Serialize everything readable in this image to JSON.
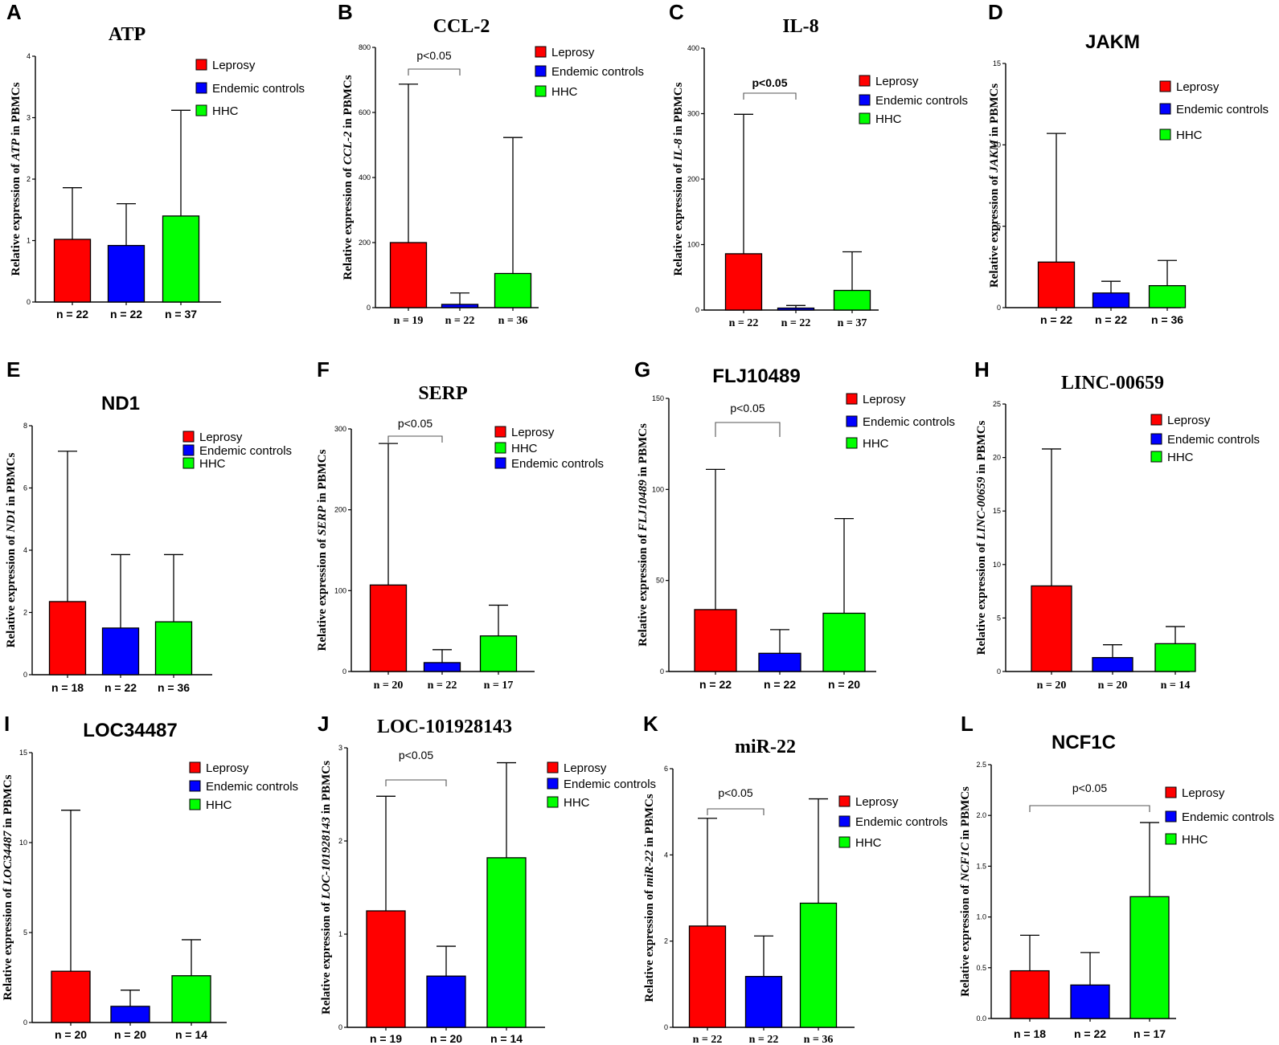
{
  "colors": {
    "Leprosy": "#ff0000",
    "Endemic controls": "#0000ff",
    "HHC": "#00ff00"
  },
  "chart_data": [
    {
      "type": "bar",
      "letter": "A",
      "title": "ATP",
      "gene": "ATP",
      "ylabel_prefix": "Relative expression of ",
      "ylabel_suffix": " in PBMCs",
      "ylim": [
        0,
        4
      ],
      "ticks": [
        0,
        1,
        2,
        3,
        4
      ],
      "tick_labels": [
        "0",
        "1",
        "2",
        "3",
        "4"
      ],
      "categories": [
        "Leprosy",
        "Endemic controls",
        "HHC"
      ],
      "values": [
        1.02,
        0.92,
        1.4
      ],
      "errors": [
        0.84,
        0.68,
        1.72
      ],
      "n_labels": [
        "n = 22",
        "n = 22",
        "n = 37"
      ],
      "legend": [
        "Leprosy",
        "Endemic controls",
        "HHC"
      ],
      "significance": []
    },
    {
      "type": "bar",
      "letter": "B",
      "title": "CCL-2",
      "gene": "CCL-2",
      "ylabel_prefix": "Relative expression of ",
      "ylabel_suffix": " in PBMCs",
      "ylim": [
        0,
        800
      ],
      "ticks": [
        0,
        200,
        400,
        600,
        800
      ],
      "tick_labels": [
        "0",
        "200",
        "400",
        "600",
        "800"
      ],
      "categories": [
        "Leprosy",
        "Endemic controls",
        "HHC"
      ],
      "values": [
        200,
        10,
        105
      ],
      "errors": [
        487,
        35,
        418
      ],
      "n_labels": [
        "n = 19",
        "n = 22",
        "n = 36"
      ],
      "legend": [
        "Leprosy",
        "Endemic controls",
        "HHC"
      ],
      "significance": [
        {
          "from": 0,
          "to": 1,
          "label": "p<0.05"
        }
      ]
    },
    {
      "type": "bar",
      "letter": "C",
      "title": "IL-8",
      "gene": "IL-8",
      "ylabel_prefix": "Relative expression of ",
      "ylabel_suffix": " in PBMCs",
      "ylim": [
        0,
        400
      ],
      "ticks": [
        0,
        100,
        200,
        300,
        400
      ],
      "tick_labels": [
        "0",
        "100",
        "200",
        "300",
        "400"
      ],
      "categories": [
        "Leprosy",
        "Endemic controls",
        "HHC"
      ],
      "values": [
        86,
        3,
        30
      ],
      "errors": [
        213,
        4,
        59
      ],
      "n_labels": [
        "n = 22",
        "n = 22",
        "n = 37"
      ],
      "legend": [
        "Leprosy",
        "Endemic controls",
        "HHC"
      ],
      "significance": [
        {
          "from": 0,
          "to": 1,
          "label": "p<0.05"
        }
      ]
    },
    {
      "type": "bar",
      "letter": "D",
      "title": "JAKM",
      "gene": "JAKM",
      "ylabel_prefix": "Relative expression of ",
      "ylabel_suffix": " in PBMCs",
      "ylim": [
        0,
        15
      ],
      "ticks": [
        0,
        5,
        10,
        15
      ],
      "tick_labels": [
        "0",
        "5",
        "10",
        "15"
      ],
      "categories": [
        "Leprosy",
        "Endemic controls",
        "HHC"
      ],
      "values": [
        2.8,
        0.9,
        1.35
      ],
      "errors": [
        7.9,
        0.72,
        1.55
      ],
      "n_labels": [
        "n = 22",
        "n = 22",
        "n = 36"
      ],
      "legend": [
        "Leprosy",
        "Endemic controls",
        "HHC"
      ],
      "significance": []
    },
    {
      "type": "bar",
      "letter": "E",
      "title": "ND1",
      "gene": "ND1",
      "ylabel_prefix": "Relative expression of ",
      "ylabel_suffix": " in PBMCs",
      "ylim": [
        0,
        8
      ],
      "ticks": [
        0,
        2,
        4,
        6,
        8
      ],
      "tick_labels": [
        "0",
        "2",
        "4",
        "6",
        "8"
      ],
      "categories": [
        "Leprosy",
        "Endemic controls",
        "HHC"
      ],
      "values": [
        2.35,
        1.5,
        1.7
      ],
      "errors": [
        4.83,
        2.36,
        2.16
      ],
      "n_labels": [
        "n = 18",
        "n = 22",
        "n = 36"
      ],
      "legend": [
        "Leprosy",
        "Endemic controls",
        "HHC"
      ],
      "significance": []
    },
    {
      "type": "bar",
      "letter": "F",
      "title": "SERP",
      "gene": "SERP",
      "ylabel_prefix": "Relative expression of ",
      "ylabel_suffix": " in PBMCs",
      "ylim": [
        0,
        300
      ],
      "ticks": [
        0,
        100,
        200,
        300
      ],
      "tick_labels": [
        "0",
        "100",
        "200",
        "300"
      ],
      "categories": [
        "Leprosy",
        "Endemic controls",
        "HHC"
      ],
      "values": [
        107,
        11,
        44
      ],
      "errors": [
        175,
        16,
        38
      ],
      "n_labels": [
        "n = 20",
        "n = 22",
        "n = 17"
      ],
      "legend": [
        "Leprosy",
        "HHC",
        "Endemic controls"
      ],
      "significance": [
        {
          "from": 0,
          "to": 1,
          "label": "p<0.05"
        }
      ]
    },
    {
      "type": "bar",
      "letter": "G",
      "title": "FLJ10489",
      "gene": "FLJ10489",
      "ylabel_prefix": "Relative expression of ",
      "ylabel_suffix": " in PBMCs",
      "ylim": [
        0,
        150
      ],
      "ticks": [
        0,
        50,
        100,
        150
      ],
      "tick_labels": [
        "0",
        "50",
        "100",
        "150"
      ],
      "categories": [
        "Leprosy",
        "Endemic controls",
        "HHC"
      ],
      "values": [
        34,
        10,
        32
      ],
      "errors": [
        77,
        13,
        52
      ],
      "n_labels": [
        "n = 22",
        "n = 22",
        "n = 20"
      ],
      "legend": [
        "Leprosy",
        "Endemic controls",
        "HHC"
      ],
      "significance": [
        {
          "from": 0,
          "to": 1,
          "label": "p<0.05"
        }
      ]
    },
    {
      "type": "bar",
      "letter": "H",
      "title": "LINC-00659",
      "gene": "LINC-00659",
      "ylabel_prefix": "Relative expression of ",
      "ylabel_suffix": " in PBMCs",
      "ylim": [
        0,
        25
      ],
      "ticks": [
        0,
        5,
        10,
        15,
        20,
        25
      ],
      "tick_labels": [
        "0",
        "5",
        "10",
        "15",
        "20",
        "25"
      ],
      "categories": [
        "Leprosy",
        "Endemic controls",
        "HHC"
      ],
      "values": [
        8.0,
        1.3,
        2.6
      ],
      "errors": [
        12.8,
        1.2,
        1.6
      ],
      "n_labels": [
        "n = 20",
        "n = 20",
        "n = 14"
      ],
      "legend": [
        "Leprosy",
        "Endemic controls",
        "HHC"
      ],
      "significance": []
    },
    {
      "type": "bar",
      "letter": "I",
      "title": "LOC34487",
      "gene": "LOC34487",
      "ylabel_prefix": "Relative expression of ",
      "ylabel_suffix": " in PBMCs",
      "ylim": [
        0,
        15
      ],
      "ticks": [
        0,
        5,
        10,
        15
      ],
      "tick_labels": [
        "0",
        "5",
        "10",
        "15"
      ],
      "categories": [
        "Leprosy",
        "Endemic controls",
        "HHC"
      ],
      "values": [
        2.85,
        0.9,
        2.6
      ],
      "errors": [
        8.95,
        0.9,
        2.0
      ],
      "n_labels": [
        "n = 20",
        "n = 20",
        "n = 14"
      ],
      "legend": [
        "Leprosy",
        "Endemic controls",
        "HHC"
      ],
      "significance": []
    },
    {
      "type": "bar",
      "letter": "J",
      "title": "LOC-101928143",
      "gene": "LOC-101928143",
      "ylabel_prefix": "Relative expression of ",
      "ylabel_suffix": " in PBMCs",
      "ylim": [
        0,
        3
      ],
      "ticks": [
        0,
        1,
        2,
        3
      ],
      "tick_labels": [
        "0",
        "1",
        "2",
        "3"
      ],
      "categories": [
        "Leprosy",
        "Endemic controls",
        "HHC"
      ],
      "values": [
        1.25,
        0.55,
        1.82
      ],
      "errors": [
        1.23,
        0.32,
        1.02
      ],
      "n_labels": [
        "n = 19",
        "n = 20",
        "n = 14"
      ],
      "legend": [
        "Leprosy",
        "Endemic controls",
        "HHC"
      ],
      "significance": [
        {
          "from": 0,
          "to": 1,
          "label": "p<0.05"
        }
      ]
    },
    {
      "type": "bar",
      "letter": "K",
      "title": "miR-22",
      "gene": "miR-22",
      "ylabel_prefix": "Relative expression of ",
      "ylabel_suffix": " in PBMCs",
      "ylim": [
        0,
        6
      ],
      "ticks": [
        0,
        2,
        4,
        6
      ],
      "tick_labels": [
        "0",
        "2",
        "4",
        "6"
      ],
      "categories": [
        "Leprosy",
        "Endemic controls",
        "HHC"
      ],
      "values": [
        2.35,
        1.18,
        2.88
      ],
      "errors": [
        2.5,
        0.94,
        2.42
      ],
      "n_labels": [
        "n = 22",
        "n = 22",
        "n = 36"
      ],
      "legend": [
        "Leprosy",
        "Endemic controls",
        "HHC"
      ],
      "significance": [
        {
          "from": 0,
          "to": 1,
          "label": "p<0.05"
        }
      ]
    },
    {
      "type": "bar",
      "letter": "L",
      "title": "NCF1C",
      "gene": "NCF1C",
      "ylabel_prefix": "Relative expression of ",
      "ylabel_suffix": " in PBMCs",
      "ylim": [
        0,
        2.5
      ],
      "ticks": [
        0,
        0.5,
        1.0,
        1.5,
        2.0,
        2.5
      ],
      "tick_labels": [
        "0.0",
        "0.5",
        "1.0",
        "1.5",
        "2.0",
        "2.5"
      ],
      "categories": [
        "Leprosy",
        "Endemic controls",
        "HHC"
      ],
      "values": [
        0.47,
        0.33,
        1.2
      ],
      "errors": [
        0.35,
        0.32,
        0.73
      ],
      "n_labels": [
        "n = 18",
        "n = 22",
        "n = 17"
      ],
      "legend": [
        "Leprosy",
        "Endemic controls",
        "HHC"
      ],
      "significance": [
        {
          "from": 0,
          "to": 2,
          "label": "p<0.05"
        }
      ]
    }
  ]
}
